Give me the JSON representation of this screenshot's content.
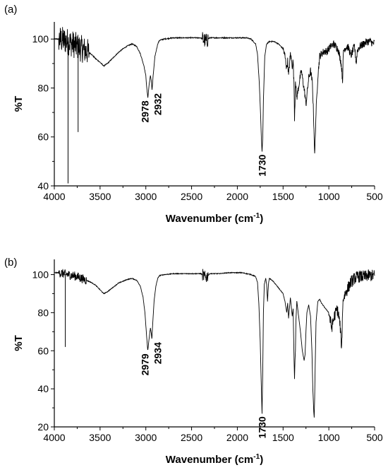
{
  "chart_data": [
    {
      "type": "line",
      "panel_label": "(a)",
      "xlabel": "Wavenumber (cm",
      "xlabel_sup": "-1",
      "xlabel_end": ")",
      "ylabel": "%T",
      "xlim": [
        4000,
        500
      ],
      "ylim": [
        40,
        107
      ],
      "x_ticks": [
        "4000",
        "3500",
        "3000",
        "2500",
        "2000",
        "1500",
        "1000",
        "500"
      ],
      "y_ticks": [
        "40",
        "60",
        "80",
        "100"
      ],
      "grid": false,
      "noise_regions": [
        [
          3950,
          3620,
          7
        ],
        [
          2380,
          2320,
          4
        ],
        [
          1500,
          500,
          2
        ]
      ],
      "spikes": [
        [
          3850,
          41
        ],
        [
          3740,
          62
        ]
      ],
      "series": [
        {
          "x": [
            4000,
            3950,
            3900,
            3850,
            3800,
            3750,
            3700,
            3650,
            3600,
            3550,
            3500,
            3460,
            3420,
            3380,
            3340,
            3300,
            3250,
            3200,
            3150,
            3100,
            3060,
            3020,
            3000,
            2990,
            2978,
            2965,
            2950,
            2940,
            2932,
            2920,
            2900,
            2870,
            2850,
            2800,
            2700,
            2600,
            2500,
            2400,
            2380,
            2360,
            2340,
            2320,
            2300,
            2200,
            2100,
            2000,
            1900,
            1850,
            1800,
            1780,
            1760,
            1745,
            1738,
            1730,
            1722,
            1715,
            1700,
            1680,
            1650,
            1620,
            1600,
            1550,
            1500,
            1480,
            1460,
            1450,
            1440,
            1420,
            1400,
            1390,
            1380,
            1375,
            1370,
            1365,
            1360,
            1350,
            1320,
            1300,
            1280,
            1260,
            1250,
            1240,
            1220,
            1200,
            1180,
            1170,
            1160,
            1155,
            1150,
            1140,
            1120,
            1100,
            1080,
            1050,
            1020,
            1000,
            980,
            950,
            900,
            870,
            860,
            850,
            845,
            840,
            830,
            800,
            780,
            760,
            740,
            720,
            700,
            690,
            680,
            660,
            640,
            620,
            600,
            580,
            560,
            540,
            520,
            500
          ],
          "y": [
            100,
            100,
            99.5,
            99,
            98,
            97,
            96,
            95,
            94,
            92,
            90.5,
            89,
            90,
            91.5,
            93,
            94.5,
            96,
            97.2,
            98,
            97,
            94,
            89,
            85,
            80,
            76,
            81,
            85,
            83,
            79,
            85,
            93,
            98,
            99.5,
            100,
            100.5,
            100.5,
            100.5,
            100.5,
            100,
            99.5,
            99,
            100,
            100.5,
            100.5,
            100.5,
            100.5,
            100.5,
            100,
            98,
            94,
            82,
            68,
            60,
            54,
            60,
            75,
            93,
            98,
            99,
            99,
            99,
            98,
            96,
            93,
            88,
            91,
            85,
            94,
            89,
            91,
            80,
            68,
            74,
            84,
            80,
            76,
            83,
            87,
            82,
            77,
            73,
            77,
            84,
            87,
            82,
            72,
            60,
            52,
            58,
            70,
            85,
            93,
            94,
            95,
            95,
            96,
            97,
            98,
            96,
            91,
            88,
            83,
            90,
            95,
            96,
            97,
            96,
            93,
            95,
            97,
            90,
            95,
            96,
            97,
            97.5,
            98,
            98.5,
            99,
            99,
            99,
            98,
            98.5
          ]
        }
      ],
      "annotations": [
        {
          "text": "2978",
          "x": 2978,
          "y": 76
        },
        {
          "text": "2932",
          "x": 2932,
          "y": 79
        },
        {
          "text": "1730",
          "x": 1730,
          "y": 54
        }
      ]
    },
    {
      "type": "line",
      "panel_label": "(b)",
      "xlabel": "Wavenumber (cm",
      "xlabel_sup": "-1",
      "xlabel_end": ")",
      "ylabel": "%T",
      "xlim": [
        4000,
        500
      ],
      "ylim": [
        20,
        108
      ],
      "x_ticks": [
        "4000",
        "3500",
        "3000",
        "2500",
        "2000",
        "1500",
        "1000",
        "500"
      ],
      "y_ticks": [
        "20",
        "40",
        "60",
        "80",
        "100"
      ],
      "grid": false,
      "noise_regions": [
        [
          3950,
          3650,
          3
        ],
        [
          2380,
          2320,
          4
        ],
        [
          1000,
          500,
          4
        ]
      ],
      "spikes": [
        [
          3880,
          62
        ]
      ],
      "series": [
        {
          "x": [
            4000,
            3950,
            3900,
            3850,
            3800,
            3750,
            3700,
            3650,
            3600,
            3550,
            3500,
            3460,
            3420,
            3380,
            3340,
            3300,
            3250,
            3200,
            3150,
            3100,
            3060,
            3030,
            3010,
            2995,
            2979,
            2965,
            2950,
            2940,
            2934,
            2925,
            2910,
            2890,
            2870,
            2850,
            2800,
            2700,
            2600,
            2500,
            2400,
            2380,
            2360,
            2340,
            2320,
            2300,
            2200,
            2100,
            2000,
            1950,
            1900,
            1850,
            1800,
            1780,
            1765,
            1750,
            1740,
            1730,
            1722,
            1715,
            1705,
            1690,
            1680,
            1670,
            1660,
            1650,
            1620,
            1600,
            1550,
            1500,
            1480,
            1460,
            1450,
            1440,
            1420,
            1400,
            1390,
            1385,
            1380,
            1375,
            1370,
            1365,
            1360,
            1350,
            1330,
            1310,
            1290,
            1270,
            1260,
            1250,
            1240,
            1220,
            1200,
            1185,
            1175,
            1165,
            1160,
            1155,
            1150,
            1140,
            1120,
            1100,
            1080,
            1050,
            1000,
            970,
            940,
            910,
            890,
            875,
            865,
            860,
            855,
            850,
            840,
            820,
            800,
            780,
            760,
            740,
            720,
            700,
            680,
            650,
            620,
            600,
            580,
            560,
            540,
            520,
            500
          ],
          "y": [
            101,
            101,
            100.5,
            100,
            99.5,
            99,
            98,
            97,
            96,
            94.5,
            92,
            90,
            91,
            92.5,
            94,
            95.5,
            96.5,
            97.5,
            98,
            97,
            94,
            88,
            80,
            70,
            60,
            66,
            72,
            69,
            66,
            74,
            86,
            94,
            98,
            99.5,
            100,
            100.5,
            100.5,
            100.5,
            100.5,
            100,
            99,
            98.5,
            99.5,
            100.5,
            100.5,
            101,
            101,
            101,
            100.5,
            100,
            99,
            96,
            85,
            65,
            45,
            27,
            50,
            80,
            95,
            98,
            95,
            86,
            95,
            98,
            97,
            96,
            93,
            90,
            86,
            80,
            85,
            77,
            88,
            78,
            82,
            68,
            55,
            45,
            55,
            60,
            75,
            86,
            78,
            70,
            60,
            55,
            58,
            70,
            80,
            84,
            78,
            60,
            40,
            28,
            25,
            35,
            50,
            75,
            86,
            87,
            85,
            83,
            80,
            72,
            78,
            82,
            78,
            72,
            65,
            60,
            70,
            82,
            88,
            90,
            92,
            94,
            96,
            97,
            98,
            98.5,
            99,
            99,
            99,
            99,
            99.5,
            99.5,
            99.5,
            99.5,
            99.5
          ]
        }
      ],
      "annotations": [
        {
          "text": "2979",
          "x": 2979,
          "y": 60
        },
        {
          "text": "2934",
          "x": 2934,
          "y": 66
        },
        {
          "text": "1730",
          "x": 1730,
          "y": 27
        }
      ]
    }
  ]
}
